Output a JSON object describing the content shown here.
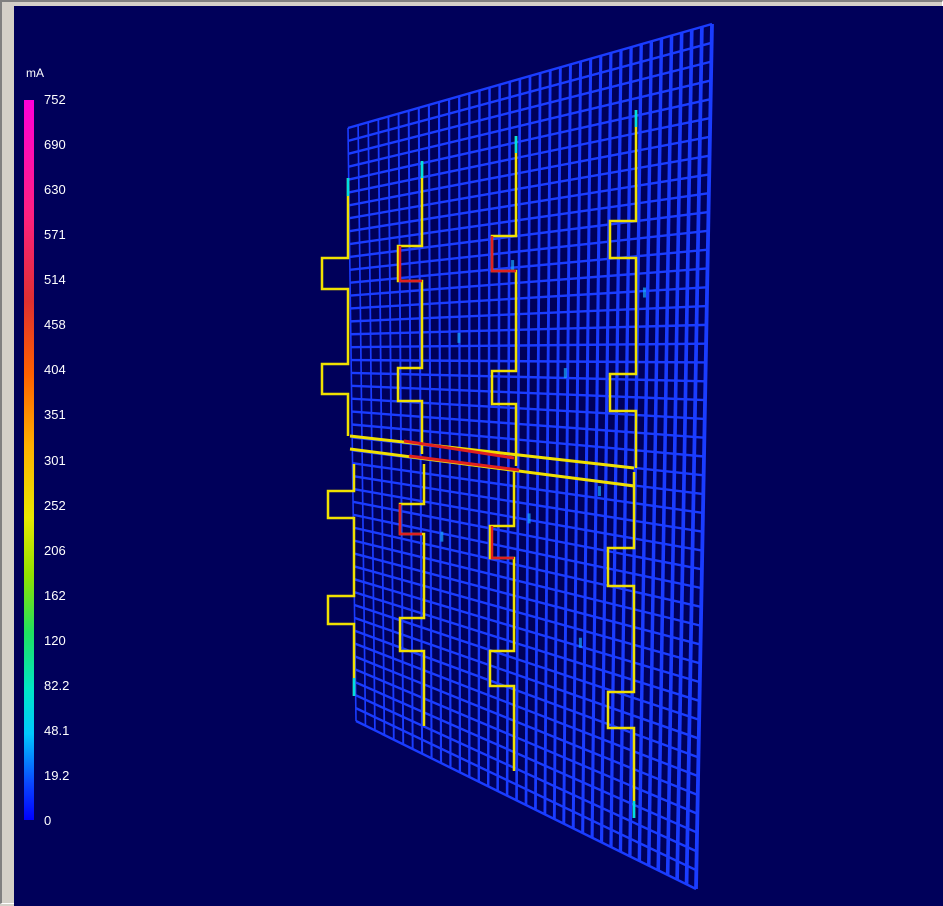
{
  "colorbar": {
    "unit": "mA",
    "ticks": [
      "752",
      "690",
      "630",
      "571",
      "514",
      "458",
      "404",
      "351",
      "301",
      "252",
      "206",
      "162",
      "120",
      "82.2",
      "48.1",
      "19.2",
      "0"
    ]
  },
  "colors": {
    "background": "#00005a",
    "grid": "#1a3cff",
    "conductor_high": "#e02020",
    "conductor_mid": "#f0e000"
  }
}
